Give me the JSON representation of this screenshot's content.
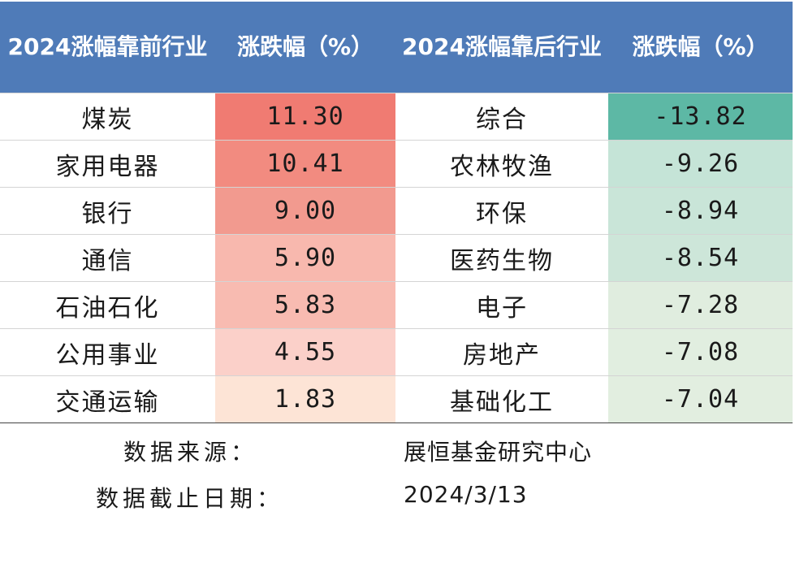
{
  "headers": {
    "col1": "2024涨幅靠前行业",
    "col2": "涨跌幅（%）",
    "col3": "2024涨幅靠后行业",
    "col4": "涨跌幅（%）"
  },
  "colors": {
    "header_bg": "#4f7bb8",
    "gain_cells": [
      "#f07b72",
      "#f28b80",
      "#f29a8f",
      "#f8b8ae",
      "#f8bbb1",
      "#fbd0c9",
      "#fde4d6"
    ],
    "loss_cells": [
      "#5db8a5",
      "#c5e4d7",
      "#c9e5d8",
      "#cde6d9",
      "#e0eddf",
      "#e1eee0",
      "#e2eee0"
    ]
  },
  "rows": [
    {
      "top_industry": "煤炭",
      "top_change": "11.30",
      "bottom_industry": "综合",
      "bottom_change": "-13.82"
    },
    {
      "top_industry": "家用电器",
      "top_change": "10.41",
      "bottom_industry": "农林牧渔",
      "bottom_change": "-9.26"
    },
    {
      "top_industry": "银行",
      "top_change": "9.00",
      "bottom_industry": "环保",
      "bottom_change": "-8.94"
    },
    {
      "top_industry": "通信",
      "top_change": "5.90",
      "bottom_industry": "医药生物",
      "bottom_change": "-8.54"
    },
    {
      "top_industry": "石油石化",
      "top_change": "5.83",
      "bottom_industry": "电子",
      "bottom_change": "-7.28"
    },
    {
      "top_industry": "公用事业",
      "top_change": "4.55",
      "bottom_industry": "房地产",
      "bottom_change": "-7.08"
    },
    {
      "top_industry": "交通运输",
      "top_change": "1.83",
      "bottom_industry": "基础化工",
      "bottom_change": "-7.04"
    }
  ],
  "footer": {
    "source_label": "数据来源：",
    "source_value": "展恒基金研究中心",
    "date_label": "数据截止日期：",
    "date_value": "2024/3/13"
  }
}
